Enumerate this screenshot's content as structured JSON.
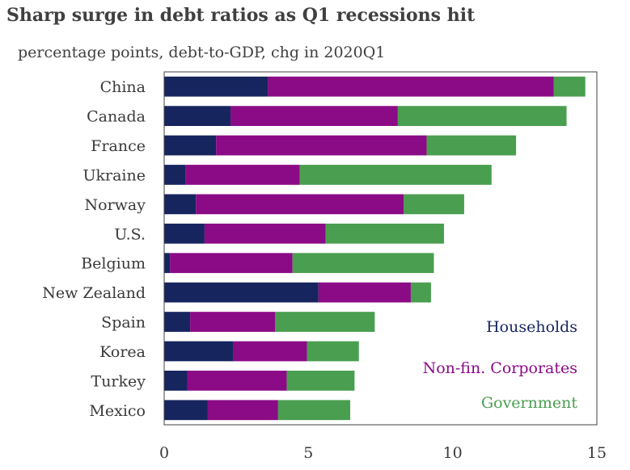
{
  "chart_data": {
    "type": "bar",
    "orientation": "horizontal",
    "stacked": true,
    "title": "Sharp surge in debt ratios as Q1 recessions hit",
    "subtitle": "percentage points, debt-to-GDP, chg in 2020Q1",
    "categories": [
      "China",
      "Canada",
      "France",
      "Ukraine",
      "Norway",
      "U.S.",
      "Belgium",
      "New Zealand",
      "Spain",
      "Korea",
      "Turkey",
      "Mexico"
    ],
    "series": [
      {
        "name": "Households",
        "color": "#17255f",
        "values": [
          3.6,
          2.3,
          1.8,
          0.75,
          1.1,
          1.4,
          0.2,
          5.35,
          0.9,
          2.4,
          0.8,
          1.5
        ]
      },
      {
        "name": "Non-fin. Corporates",
        "color": "#8b0a86",
        "values": [
          9.9,
          5.8,
          7.3,
          3.95,
          7.2,
          4.2,
          4.25,
          3.2,
          2.95,
          2.55,
          3.45,
          2.45
        ]
      },
      {
        "name": "Government",
        "color": "#4a9e4f",
        "values": [
          1.1,
          5.85,
          3.1,
          6.65,
          2.1,
          4.1,
          4.9,
          0.7,
          3.45,
          1.8,
          2.35,
          2.5
        ]
      }
    ],
    "xlim": [
      0,
      15
    ],
    "xticks": [
      0,
      5,
      10,
      15
    ],
    "legend_position": "bottom-right inside plot",
    "grid": false
  }
}
